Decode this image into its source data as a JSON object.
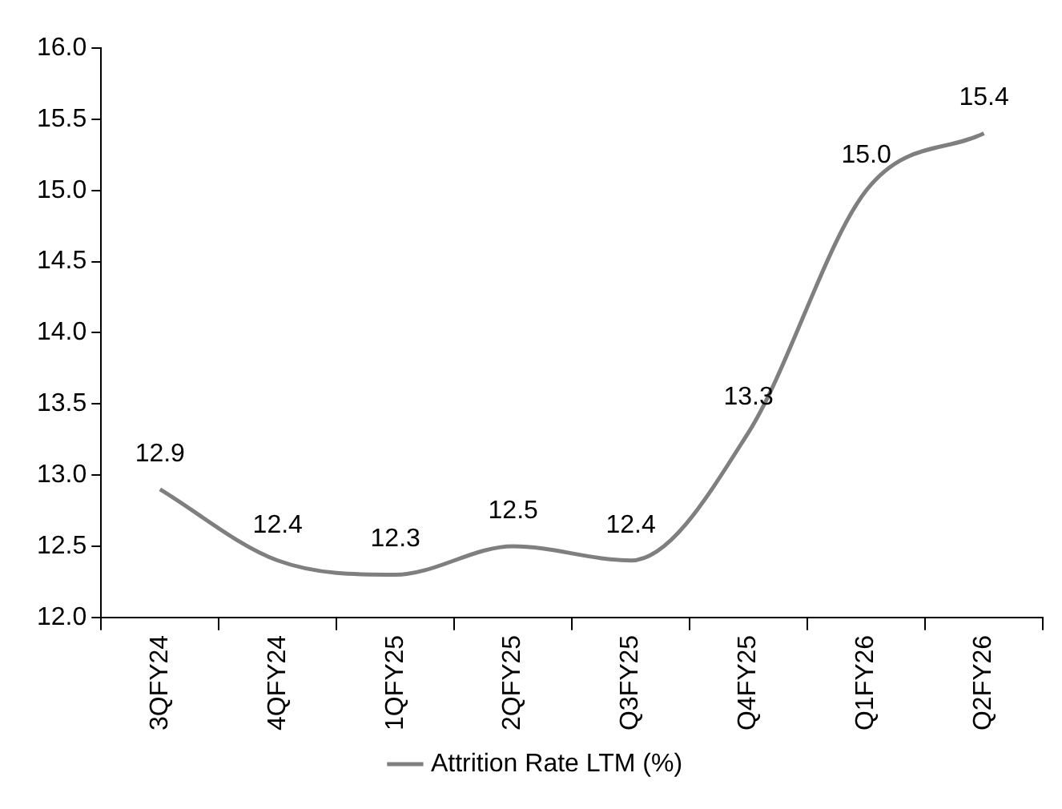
{
  "chart_data": {
    "type": "line",
    "categories": [
      "3QFY24",
      "4QFY24",
      "1QFY25",
      "2QFY25",
      "Q3FY25",
      "Q4FY25",
      "Q1FY26",
      "Q2FY26"
    ],
    "series": [
      {
        "name": "Attrition Rate LTM (%)",
        "color": "#7f7f7f",
        "values": [
          12.9,
          12.4,
          12.3,
          12.5,
          12.4,
          13.3,
          15.0,
          15.4
        ],
        "value_labels": [
          "12.9",
          "12.4",
          "12.3",
          "12.5",
          "12.4",
          "13.3",
          "15.0",
          "15.4"
        ]
      }
    ],
    "ylim": [
      12,
      16
    ],
    "yticks": [
      {
        "value": 12,
        "label": "12.0"
      },
      {
        "value": 12.5,
        "label": "12.5"
      },
      {
        "value": 13,
        "label": "13.0"
      },
      {
        "value": 13.5,
        "label": "13.5"
      },
      {
        "value": 14,
        "label": "14.0"
      },
      {
        "value": 14.5,
        "label": "14.5"
      },
      {
        "value": 15,
        "label": "15.0"
      },
      {
        "value": 15.5,
        "label": "15.5"
      },
      {
        "value": 16,
        "label": "16.0"
      }
    ],
    "grid": false,
    "legend": "bottom",
    "marker": "none",
    "line_style": "solid"
  }
}
